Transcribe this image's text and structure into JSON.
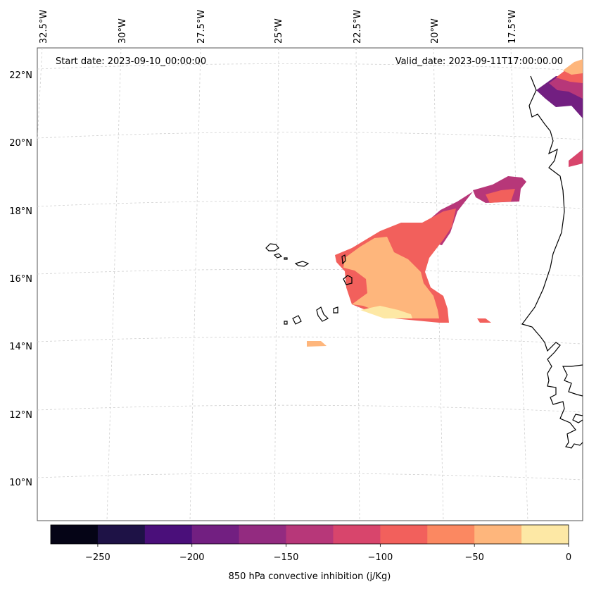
{
  "map": {
    "start_label": "Start date: 2023-09-10_00:00:00",
    "valid_label": "Valid_date: 2023-09-11T17:00:00.00",
    "lon_labels": [
      "32.5°W",
      "30°W",
      "27.5°W",
      "25°W",
      "22.5°W",
      "20°W",
      "17.5°W"
    ],
    "lat_labels": [
      "22°N",
      "20°N",
      "18°N",
      "16°N",
      "14°N",
      "12°N",
      "10°N"
    ]
  },
  "colorbar": {
    "title": "850 hPa convective inhibition (j/Kg)",
    "tick_labels": [
      "−250",
      "−200",
      "−150",
      "−100",
      "−50",
      "0"
    ],
    "levels": [
      -275,
      -250,
      -225,
      -200,
      -175,
      -150,
      -125,
      -100,
      -75,
      -50,
      -25,
      0
    ],
    "colors": [
      "#050416",
      "#1e1246",
      "#4a0f7a",
      "#721f81",
      "#932b80",
      "#b73779",
      "#d8456c",
      "#f2605c",
      "#fb8861",
      "#feb67c",
      "#fde8a5"
    ]
  },
  "colors": {
    "frame": "#555555",
    "coast": "#000000",
    "grid": "#cfcfcf"
  }
}
